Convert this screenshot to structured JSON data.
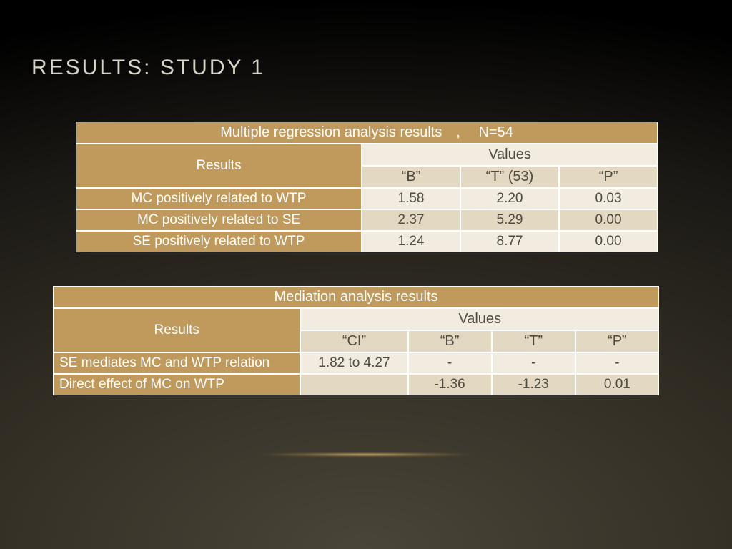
{
  "title": "RESULTS: STUDY 1",
  "colors": {
    "header_bg": "#c09a5c",
    "header_text": "#ffffff",
    "cell_light": "#f2ece0",
    "cell_dark": "#e3d9c3",
    "cell_text": "#4f4a3e",
    "border": "#ffffff"
  },
  "table1": {
    "title": "Multiple regression analysis results ,  N=54",
    "results_label": "Results",
    "values_label": "Values",
    "cols": [
      "“B”",
      "“T” (53)",
      "“P”"
    ],
    "rows": [
      {
        "label": "MC positively related to WTP",
        "b": "1.58",
        "t": "2.20",
        "p": "0.03"
      },
      {
        "label": "MC positively related to SE",
        "b": "2.37",
        "t": "5.29",
        "p": "0.00"
      },
      {
        "label": "SE positively related to WTP",
        "b": "1.24",
        "t": "8.77",
        "p": "0.00"
      }
    ]
  },
  "table2": {
    "title": "Mediation analysis results",
    "results_label": "Results",
    "values_label": "Values",
    "cols": [
      "“CI”",
      "“B”",
      "“T”",
      "“P”"
    ],
    "rows": [
      {
        "label": "SE mediates MC and WTP relation",
        "ci": "1.82 to 4.27",
        "b": "-",
        "t": "-",
        "p": "-"
      },
      {
        "label": "Direct effect of MC on WTP",
        "ci": "",
        "b": "-1.36",
        "t": "-1.23",
        "p": "0.01"
      }
    ]
  }
}
